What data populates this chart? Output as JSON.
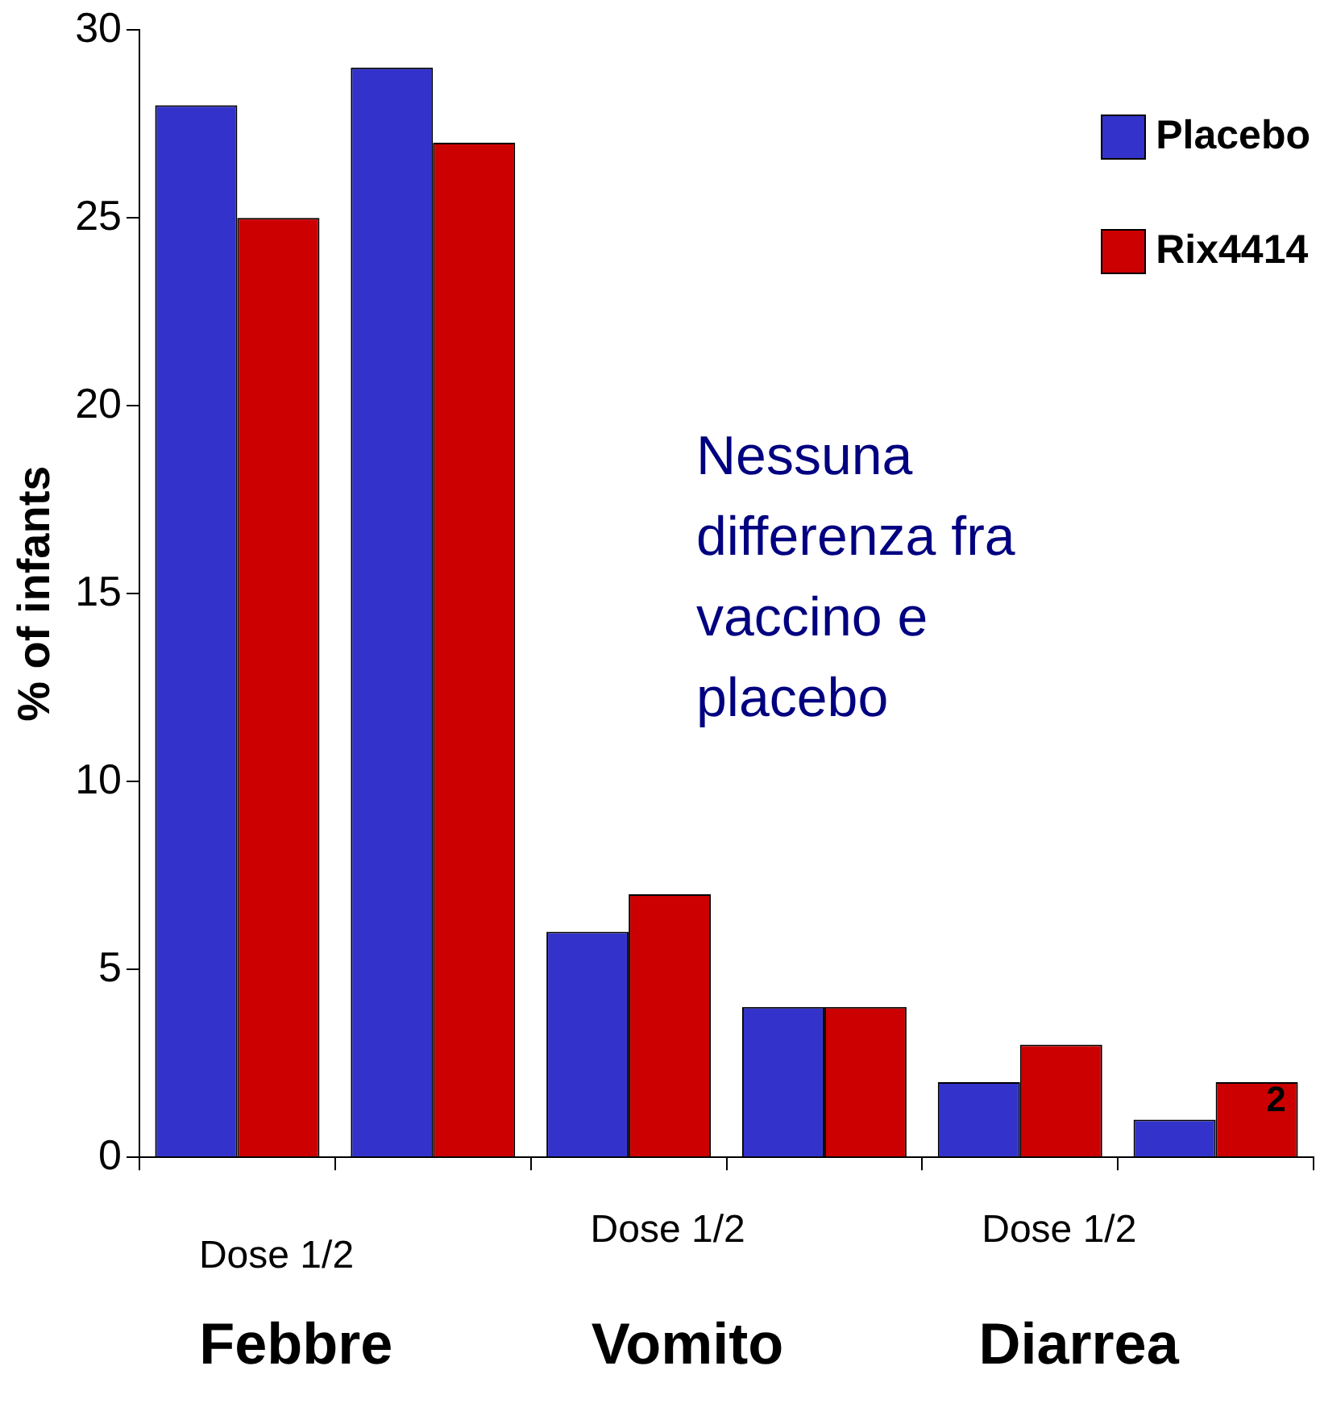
{
  "chart_data": {
    "type": "bar",
    "ylabel": "% of infants",
    "categories": [
      null,
      null,
      null,
      null,
      null,
      null
    ],
    "series": [
      {
        "name": "Placebo",
        "color": "#3333cc",
        "values": [
          28,
          29,
          6,
          4,
          2,
          1
        ]
      },
      {
        "name": "Rix4414",
        "color": "#cc0000",
        "values": [
          25,
          27,
          7,
          4,
          3,
          2
        ]
      }
    ],
    "ylim": [
      0,
      30
    ],
    "yticks": [
      0,
      5,
      10,
      15,
      20,
      25,
      30
    ],
    "grid": false,
    "legend": "top right",
    "annotations": [
      "Dose 1/2",
      "Dose 1/2",
      "Dose 1/2",
      "Febbre",
      "Vomito",
      "Diarrea",
      "Nessuna differenza fra vaccino e placebo",
      "2"
    ]
  }
}
